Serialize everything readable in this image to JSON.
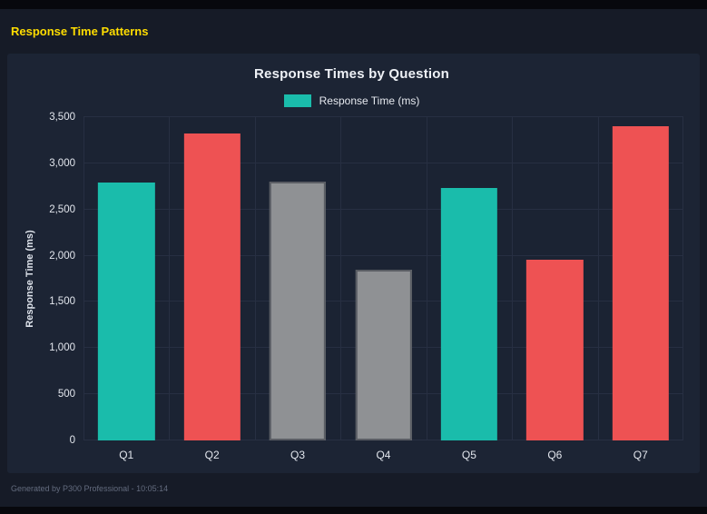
{
  "page": {
    "title": "Response Time Patterns",
    "footer": "Generated by P300 Professional - 10:05:14"
  },
  "chart_data": {
    "type": "bar",
    "title": "Response Times by Question",
    "legend": [
      {
        "label": "Response Time (ms)",
        "color": "#1abcab"
      }
    ],
    "categories": [
      "Q1",
      "Q2",
      "Q3",
      "Q4",
      "Q5",
      "Q6",
      "Q7"
    ],
    "values": [
      2790,
      3320,
      2800,
      1850,
      2730,
      1960,
      3400
    ],
    "bar_colors": [
      "#1abcab",
      "#ee5253",
      "#8f9194",
      "#8f9194",
      "#1abcab",
      "#ee5253",
      "#ee5253"
    ],
    "bar_borders": [
      null,
      null,
      "#5a5d64",
      "#5a5d64",
      null,
      null,
      null
    ],
    "xlabel": "",
    "ylabel": "Response Time (ms)",
    "ylim": [
      0,
      3500
    ],
    "yticks": [
      "0",
      "500",
      "1,000",
      "1,500",
      "2,000",
      "2,500",
      "3,000",
      "3,500"
    ],
    "grid": true,
    "legend_position": "top",
    "bar_width_fraction": 0.66
  },
  "colors": {
    "background": "#161b27",
    "panel": "#1c2434",
    "accent_teal": "#1abcab",
    "accent_red": "#ee5253",
    "accent_gray": "#8f9194",
    "title_yellow": "#ffdd00",
    "gridline": "#272f42"
  }
}
